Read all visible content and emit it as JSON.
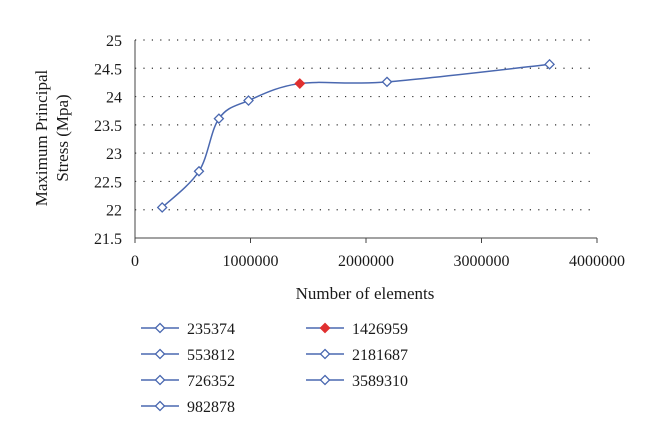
{
  "chart_data": {
    "type": "line",
    "xlabel": "Number of elements",
    "ylabel_lines": [
      "Maximum Principal",
      "Stress (Mpa)"
    ],
    "xlim": [
      0,
      4000000
    ],
    "ylim": [
      21.5,
      25
    ],
    "x_ticks": [
      0,
      1000000,
      2000000,
      3000000,
      4000000
    ],
    "x_tick_labels": [
      "0",
      "1000000",
      "2000000",
      "3000000",
      "4000000"
    ],
    "y_ticks": [
      21.5,
      22,
      22.5,
      23,
      23.5,
      24,
      24.5,
      25
    ],
    "y_tick_labels": [
      "21.5",
      "22",
      "22.5",
      "23",
      "23.5",
      "24",
      "24.5",
      "25"
    ],
    "grid": "horizontal dotted",
    "line_color": "#4a68b0",
    "highlight_color": "#e03030",
    "legend_placement": "bottom",
    "points": [
      {
        "label": "235374",
        "x": 235374,
        "y": 22.04,
        "highlight": false
      },
      {
        "label": "553812",
        "x": 553812,
        "y": 22.68,
        "highlight": false
      },
      {
        "label": "726352",
        "x": 726352,
        "y": 23.61,
        "highlight": false
      },
      {
        "label": "982878",
        "x": 982878,
        "y": 23.93,
        "highlight": false
      },
      {
        "label": "1426959",
        "x": 1426959,
        "y": 24.23,
        "highlight": true
      },
      {
        "label": "2181687",
        "x": 2181687,
        "y": 24.26,
        "highlight": false
      },
      {
        "label": "3589310",
        "x": 3589310,
        "y": 24.57,
        "highlight": false
      }
    ]
  }
}
